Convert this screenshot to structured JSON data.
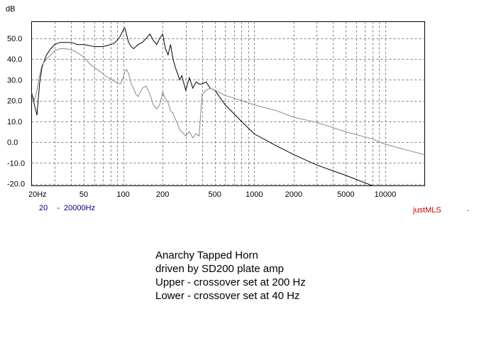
{
  "chart_data": {
    "type": "line",
    "ylabel": "dB",
    "xscale": "log",
    "xlim": [
      20,
      20000
    ],
    "ylim": [
      -21,
      58
    ],
    "y_ticks": [
      50,
      40,
      30,
      20,
      10,
      0,
      -10,
      -20
    ],
    "y_tick_labels": [
      "50.0",
      "40.0",
      "30.0",
      "20.0",
      "10.0",
      "0.0",
      "-10.0",
      "-20.0"
    ],
    "x_ticks": [
      20,
      50,
      100,
      200,
      500,
      1000,
      2000,
      5000,
      10000
    ],
    "x_tick_labels": [
      "20Hz",
      "50",
      "100",
      "200",
      "500",
      "1000",
      "2000",
      "5000",
      "10000"
    ],
    "grid": true,
    "series": [
      {
        "color": "#000000",
        "x": [
          20,
          21,
          22,
          23,
          24,
          26,
          28,
          30,
          33,
          36,
          40,
          45,
          50,
          55,
          60,
          65,
          70,
          75,
          80,
          85,
          90,
          95,
          100,
          103,
          106,
          110,
          115,
          120,
          125,
          130,
          140,
          150,
          160,
          170,
          180,
          190,
          200,
          210,
          220,
          230,
          240,
          250,
          260,
          270,
          280,
          300,
          320,
          340,
          360,
          380,
          400,
          430,
          460,
          500,
          600,
          800,
          1000,
          1500,
          2000,
          3000,
          5000,
          8000
        ],
        "y": [
          24,
          18,
          13,
          28,
          36,
          42,
          45,
          47,
          48,
          48,
          48,
          47,
          47,
          46.5,
          46,
          46,
          46,
          46.5,
          47,
          47.5,
          49,
          51,
          54,
          55,
          52,
          48,
          46,
          45,
          46,
          47,
          48,
          50,
          52,
          49,
          47,
          50,
          52,
          45,
          42,
          47,
          40,
          36,
          33,
          30,
          32,
          25,
          31,
          26,
          29,
          28,
          28,
          29,
          26,
          25,
          18,
          10,
          4,
          -2,
          -6,
          -11,
          -16,
          -21
        ]
      },
      {
        "color": "#888888",
        "x": [
          20,
          21,
          22,
          23,
          24,
          26,
          28,
          30,
          33,
          36,
          40,
          45,
          50,
          55,
          60,
          65,
          70,
          75,
          80,
          85,
          90,
          95,
          100,
          103,
          106,
          110,
          115,
          120,
          125,
          130,
          140,
          150,
          160,
          170,
          180,
          190,
          200,
          210,
          220,
          230,
          240,
          250,
          260,
          270,
          280,
          300,
          320,
          340,
          360,
          380,
          400,
          430,
          460,
          500,
          600,
          800,
          1000,
          1500,
          2000,
          3000,
          5000,
          8000,
          10000,
          15000,
          20000
        ],
        "y": [
          24,
          20,
          25,
          32,
          37,
          40,
          42,
          44,
          45,
          45,
          44.5,
          43,
          41,
          38,
          36,
          34.5,
          33,
          31.5,
          30.5,
          29.5,
          28.5,
          28,
          31,
          34,
          35,
          33,
          28,
          26,
          23,
          22,
          26,
          27,
          23,
          18,
          16,
          18,
          24,
          21,
          19,
          15,
          14,
          11,
          9,
          6,
          5,
          3,
          5,
          2,
          4,
          3,
          23,
          25,
          26,
          25,
          22.5,
          20,
          18,
          15,
          12,
          9.5,
          5,
          1.5,
          -1,
          -4,
          -6
        ]
      }
    ]
  },
  "range": {
    "from": "20",
    "sep": "-",
    "to": "20000",
    "unit": "Hz"
  },
  "brand": "justMLS",
  "corner_mark": ".",
  "caption": {
    "line1": "Anarchy Tapped Horn",
    "line2": "driven by SD200 plate amp",
    "line3": "Upper - crossover set at 200 Hz",
    "line4": "Lower - crossover set at 40 Hz"
  }
}
